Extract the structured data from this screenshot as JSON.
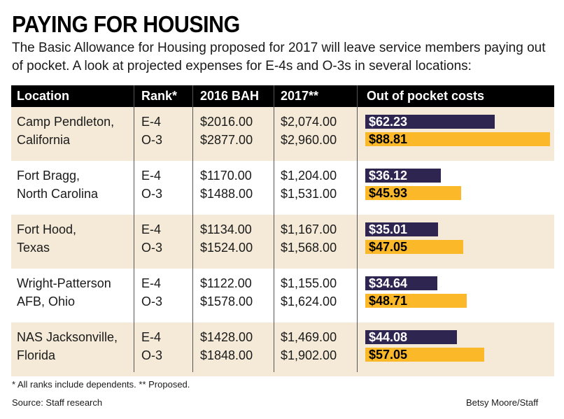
{
  "header": {
    "title": "PAYING FOR HOUSING",
    "subtitle": "The Basic Allowance for Housing proposed for 2017 will leave service members paying out of pocket. A look at projected expenses for E-4s and O-3s in several locations:"
  },
  "colors": {
    "e4_bar": "#2e2650",
    "o3_bar": "#fbb829",
    "header_bg": "#000000",
    "shaded_row": "#f4ead7"
  },
  "chart_data": {
    "type": "table",
    "title": "PAYING FOR HOUSING",
    "columns": [
      "Location",
      "Rank*",
      "2016 BAH",
      "2017**",
      "Out of pocket costs"
    ],
    "rows": [
      {
        "location_line1": "Camp Pendleton,",
        "location_line2": "California",
        "entries": [
          {
            "rank": "E-4",
            "bah2016": "$2016.00",
            "bah2017": "$2,074.00",
            "oop": 62.23,
            "oop_label": "$62.23"
          },
          {
            "rank": "O-3",
            "bah2016": "$2877.00",
            "bah2017": "$2,960.00",
            "oop": 88.81,
            "oop_label": "$88.81"
          }
        ]
      },
      {
        "location_line1": "Fort Bragg,",
        "location_line2": "North Carolina",
        "entries": [
          {
            "rank": "E-4",
            "bah2016": "$1170.00",
            "bah2017": "$1,204.00",
            "oop": 36.12,
            "oop_label": "$36.12"
          },
          {
            "rank": "O-3",
            "bah2016": "$1488.00",
            "bah2017": "$1,531.00",
            "oop": 45.93,
            "oop_label": "$45.93"
          }
        ]
      },
      {
        "location_line1": "Fort Hood,",
        "location_line2": "Texas",
        "entries": [
          {
            "rank": "E-4",
            "bah2016": "$1134.00",
            "bah2017": "$1,167.00",
            "oop": 35.01,
            "oop_label": "$35.01"
          },
          {
            "rank": "O-3",
            "bah2016": "$1524.00",
            "bah2017": "$1,568.00",
            "oop": 47.05,
            "oop_label": "$47.05"
          }
        ]
      },
      {
        "location_line1": "Wright-Patterson",
        "location_line2": "AFB, Ohio",
        "entries": [
          {
            "rank": "E-4",
            "bah2016": "$1122.00",
            "bah2017": "$1,155.00",
            "oop": 34.64,
            "oop_label": "$34.64"
          },
          {
            "rank": "O-3",
            "bah2016": "$1578.00",
            "bah2017": "$1,624.00",
            "oop": 48.71,
            "oop_label": "$48.71"
          }
        ]
      },
      {
        "location_line1": "NAS Jacksonville,",
        "location_line2": "Florida",
        "entries": [
          {
            "rank": "E-4",
            "bah2016": "$1428.00",
            "bah2017": "$1,469.00",
            "oop": 44.08,
            "oop_label": "$44.08"
          },
          {
            "rank": "O-3",
            "bah2016": "$1848.00",
            "bah2017": "$1,902.00",
            "oop": 57.05,
            "oop_label": "$57.05"
          }
        ]
      }
    ],
    "bar_series": [
      {
        "name": "E-4",
        "color": "#2e2650"
      },
      {
        "name": "O-3",
        "color": "#fbb829"
      }
    ],
    "bar_max": 90
  },
  "footer": {
    "notes": "* All ranks include dependents.    ** Proposed.",
    "source": "Source: Staff research",
    "credit": "Betsy Moore/Staff"
  }
}
